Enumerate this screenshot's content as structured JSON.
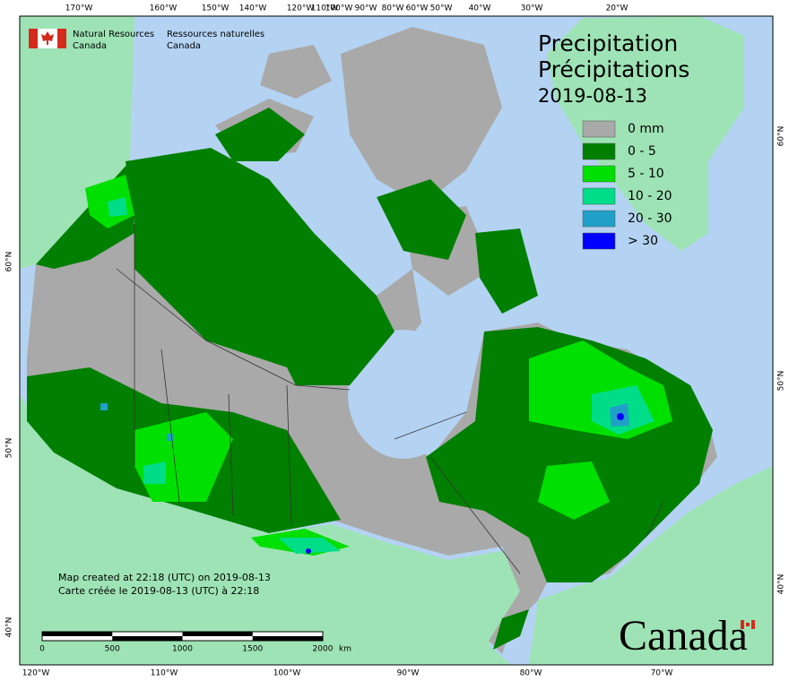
{
  "header": {
    "dept_en": [
      "Natural Resources",
      "Canada"
    ],
    "dept_fr": [
      "Ressources naturelles",
      "Canada"
    ]
  },
  "title": {
    "en": "Precipitation",
    "fr": "Précipitations",
    "date": "2019-08-13"
  },
  "legend": {
    "items": [
      {
        "label": "0 mm",
        "color": "#a9a9a9"
      },
      {
        "label": "0 - 5",
        "color": "#007f00"
      },
      {
        "label": "5 - 10",
        "color": "#00e000"
      },
      {
        "label": "10 - 20",
        "color": "#00dd88"
      },
      {
        "label": "20 - 30",
        "color": "#20a0c8"
      },
      {
        "label": "> 30",
        "color": "#0000ff"
      }
    ]
  },
  "graticule": {
    "top": [
      "170°W",
      "160°W",
      "150°W",
      "140°W",
      "120°W",
      "110°W",
      "100°W",
      "90°W",
      "80°W",
      "60°W",
      "50°W",
      "40°W",
      "30°W",
      "20°W"
    ],
    "bottom": [
      "120°W",
      "110°W",
      "100°W",
      "90°W",
      "80°W",
      "70°W"
    ],
    "left": [
      "60°N",
      "50°N",
      "40°N"
    ],
    "right": [
      "60°N",
      "50°N",
      "40°N"
    ]
  },
  "credits": [
    "Map created at 22:18 (UTC) on 2019-08-13",
    "Carte créée le 2019-08-13 (UTC) à 22:18"
  ],
  "scale_bar": {
    "labels": [
      "0",
      "500",
      "1000",
      "1500",
      "2000"
    ],
    "unit": "km"
  },
  "wordmark": "Canada"
}
